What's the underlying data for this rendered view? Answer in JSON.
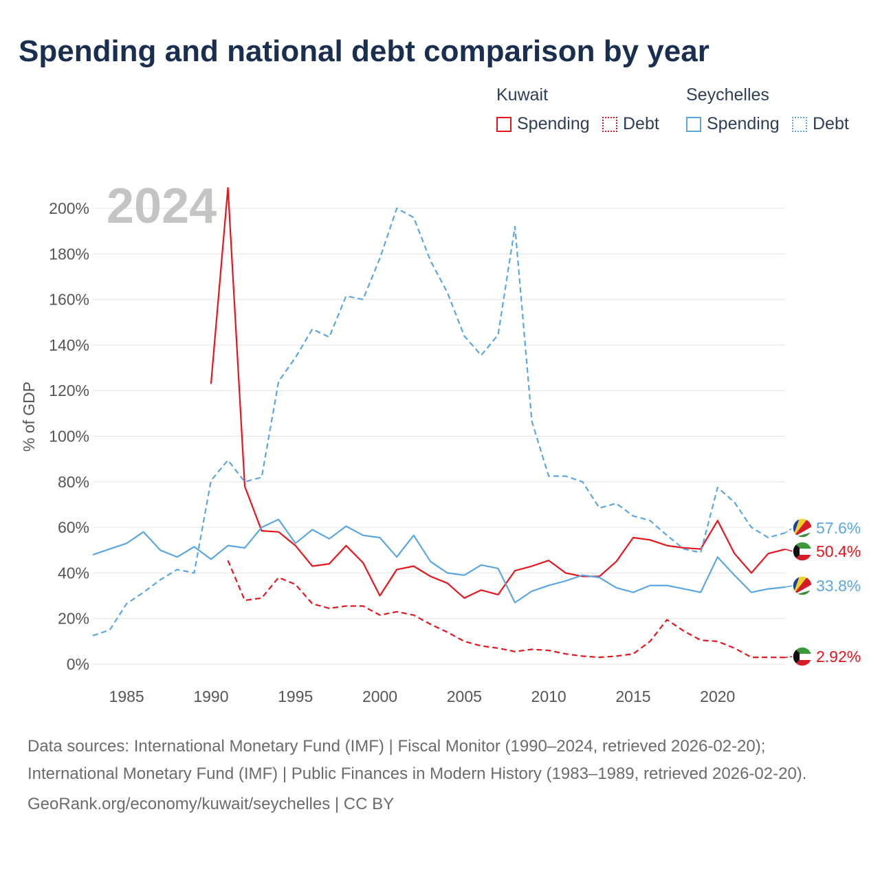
{
  "title": "Spending and national debt comparison by year",
  "legend": {
    "groups": [
      {
        "country": "Kuwait",
        "color": "#e8141c",
        "spending_label": "Spending",
        "debt_label": "Debt"
      },
      {
        "country": "Seychelles",
        "color": "#5aa6e3",
        "spending_label": "Spending",
        "debt_label": "Debt"
      }
    ]
  },
  "year_overlay": "2024",
  "footer": {
    "sources": "Data sources: International Monetary Fund (IMF) | Fiscal Monitor (1990–2024, retrieved 2026-02-20); International Monetary Fund (IMF) | Public Finances in Modern History (1983–1989, retrieved 2026-02-20).",
    "link": "GeoRank.org/economy/kuwait/seychelles | CC BY"
  },
  "chart_data": {
    "type": "line",
    "title": "Spending and national debt comparison by year",
    "ylabel": "% of GDP",
    "xlabel": "",
    "xlim": [
      1983,
      2024
    ],
    "ylim": [
      0,
      200
    ],
    "x_ticks": [
      1985,
      1990,
      1995,
      2000,
      2005,
      2010,
      2015,
      2020
    ],
    "y_ticks": [
      0,
      20,
      40,
      60,
      80,
      100,
      120,
      140,
      160,
      180,
      200
    ],
    "y_tick_labels": [
      "0%",
      "20%",
      "40%",
      "60%",
      "80%",
      "100%",
      "120%",
      "140%",
      "160%",
      "180%",
      "200%"
    ],
    "grid": true,
    "series": [
      {
        "name": "Kuwait Spending",
        "country": "Kuwait",
        "color": "#e8141c",
        "dashed": false,
        "end_label": "50.4%",
        "x": [
          1990,
          1991,
          1992,
          1993,
          1994,
          1995,
          1996,
          1997,
          1998,
          1999,
          2000,
          2001,
          2002,
          2003,
          2004,
          2005,
          2006,
          2007,
          2008,
          2009,
          2010,
          2011,
          2012,
          2013,
          2014,
          2015,
          2016,
          2017,
          2018,
          2019,
          2020,
          2021,
          2022,
          2023,
          2024
        ],
        "values": [
          123,
          209,
          78,
          58.5,
          58,
          52,
          43,
          44,
          52,
          44.5,
          30,
          41.5,
          43,
          38.5,
          35.5,
          29,
          32.5,
          30.5,
          41,
          43,
          45.5,
          40,
          38.5,
          38.5,
          45,
          55.5,
          54.5,
          52,
          51,
          50.5,
          63,
          48.5,
          40,
          48.5,
          50.4
        ]
      },
      {
        "name": "Kuwait Debt",
        "country": "Kuwait",
        "color": "#e8141c",
        "dashed": true,
        "end_label": "2.92%",
        "x": [
          1991,
          1992,
          1993,
          1994,
          1995,
          1996,
          1997,
          1998,
          1999,
          2000,
          2001,
          2002,
          2003,
          2004,
          2005,
          2006,
          2007,
          2008,
          2009,
          2010,
          2011,
          2012,
          2013,
          2014,
          2015,
          2016,
          2017,
          2018,
          2019,
          2020,
          2021,
          2022,
          2023,
          2024
        ],
        "values": [
          45.5,
          28,
          29,
          38,
          35,
          26.5,
          24.5,
          25.5,
          25.5,
          21.5,
          23,
          21.5,
          17.5,
          14,
          10,
          8,
          7,
          5.5,
          6.5,
          6,
          4.5,
          3.5,
          3,
          3.5,
          4.5,
          10,
          19.5,
          14.5,
          10.5,
          10,
          7,
          3,
          3,
          2.92
        ]
      },
      {
        "name": "Seychelles Spending",
        "country": "Seychelles",
        "color": "#5aa6e3",
        "dashed": false,
        "end_label": "33.8%",
        "x": [
          1983,
          1984,
          1985,
          1986,
          1987,
          1988,
          1989,
          1990,
          1991,
          1992,
          1993,
          1994,
          1995,
          1996,
          1997,
          1998,
          1999,
          2000,
          2001,
          2002,
          2003,
          2004,
          2005,
          2006,
          2007,
          2008,
          2009,
          2010,
          2011,
          2012,
          2013,
          2014,
          2015,
          2016,
          2017,
          2018,
          2019,
          2020,
          2021,
          2022,
          2023,
          2024
        ],
        "values": [
          48,
          50.5,
          53,
          58,
          50,
          47,
          51.5,
          46,
          52,
          51,
          60,
          63.5,
          53,
          59,
          55,
          60.5,
          56.5,
          55.5,
          47,
          56.5,
          45,
          40,
          39,
          43.5,
          42,
          27,
          32,
          34.5,
          36.5,
          39,
          38,
          33.5,
          31.5,
          34.5,
          34.5,
          33,
          31.5,
          47,
          39,
          31.5,
          33,
          33.8
        ]
      },
      {
        "name": "Seychelles Debt",
        "country": "Seychelles",
        "color": "#5aa6e3",
        "dashed": true,
        "end_label": "57.6%",
        "x": [
          1983,
          1984,
          1985,
          1986,
          1987,
          1988,
          1989,
          1990,
          1991,
          1992,
          1993,
          1994,
          1995,
          1996,
          1997,
          1998,
          1999,
          2000,
          2001,
          2002,
          2003,
          2004,
          2005,
          2006,
          2007,
          2008,
          2009,
          2010,
          2011,
          2012,
          2013,
          2014,
          2015,
          2016,
          2017,
          2018,
          2019,
          2020,
          2021,
          2022,
          2023,
          2024
        ],
        "values": [
          12.5,
          15,
          26.5,
          31.5,
          37,
          41.5,
          40,
          80.5,
          89.5,
          80,
          82,
          124,
          134.5,
          147,
          143.5,
          161.5,
          160,
          178,
          200,
          196,
          177,
          163,
          144,
          135.5,
          144.5,
          192,
          106.5,
          82.5,
          82.5,
          80,
          68.5,
          70.5,
          65,
          63,
          56.5,
          50.5,
          49,
          77.5,
          71,
          60,
          55.5,
          57.6
        ]
      }
    ]
  }
}
